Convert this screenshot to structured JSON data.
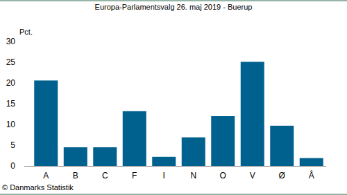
{
  "chart_data": {
    "type": "bar",
    "title": "Europa-Parlamentsvalg 26. maj 2019 - Buerup",
    "y_label": "Pct.",
    "source": "© Danmarks Statistik",
    "categories": [
      "A",
      "B",
      "C",
      "F",
      "I",
      "N",
      "O",
      "V",
      "Ø",
      "Å"
    ],
    "values": [
      20.6,
      4.5,
      4.5,
      13.2,
      2.2,
      6.9,
      12.0,
      25.1,
      9.7,
      1.9
    ],
    "color": "#00618f",
    "ylim": [
      0,
      30
    ],
    "yticks": [
      0,
      5,
      10,
      15,
      20,
      25,
      30
    ],
    "grid": false
  }
}
